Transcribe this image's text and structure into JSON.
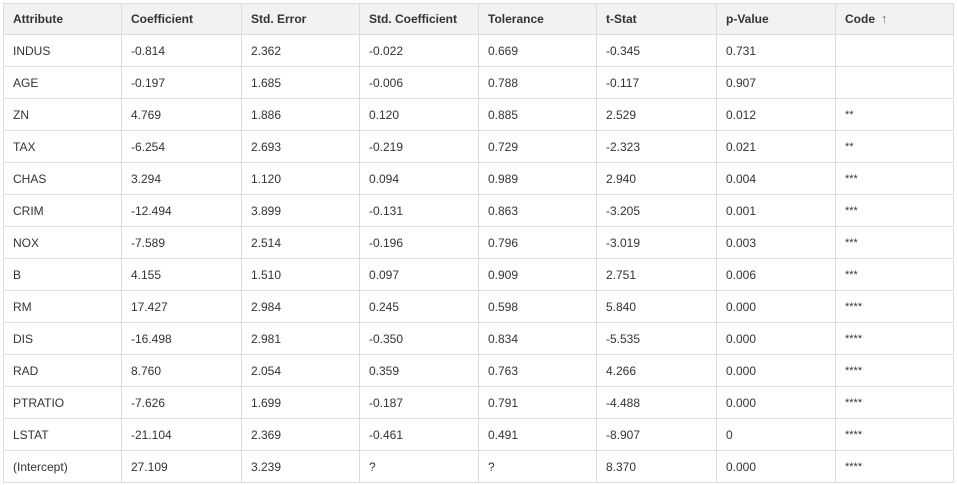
{
  "table": {
    "columns": [
      {
        "key": "attribute",
        "label": "Attribute"
      },
      {
        "key": "coefficient",
        "label": "Coefficient"
      },
      {
        "key": "std_error",
        "label": "Std. Error"
      },
      {
        "key": "std_coefficient",
        "label": "Std. Coefficient"
      },
      {
        "key": "tolerance",
        "label": "Tolerance"
      },
      {
        "key": "t_stat",
        "label": "t-Stat"
      },
      {
        "key": "p_value",
        "label": "p-Value"
      },
      {
        "key": "code",
        "label": "Code"
      }
    ],
    "sort": {
      "column": "code",
      "direction": "ascending",
      "icon": "arrow-up-icon",
      "glyph": "↑"
    },
    "rows": [
      [
        "INDUS",
        "-0.814",
        "2.362",
        "-0.022",
        "0.669",
        "-0.345",
        "0.731",
        ""
      ],
      [
        "AGE",
        "-0.197",
        "1.685",
        "-0.006",
        "0.788",
        "-0.117",
        "0.907",
        ""
      ],
      [
        "ZN",
        "4.769",
        "1.886",
        "0.120",
        "0.885",
        "2.529",
        "0.012",
        "**"
      ],
      [
        "TAX",
        "-6.254",
        "2.693",
        "-0.219",
        "0.729",
        "-2.323",
        "0.021",
        "**"
      ],
      [
        "CHAS",
        "3.294",
        "1.120",
        "0.094",
        "0.989",
        "2.940",
        "0.004",
        "***"
      ],
      [
        "CRIM",
        "-12.494",
        "3.899",
        "-0.131",
        "0.863",
        "-3.205",
        "0.001",
        "***"
      ],
      [
        "NOX",
        "-7.589",
        "2.514",
        "-0.196",
        "0.796",
        "-3.019",
        "0.003",
        "***"
      ],
      [
        "B",
        "4.155",
        "1.510",
        "0.097",
        "0.909",
        "2.751",
        "0.006",
        "***"
      ],
      [
        "RM",
        "17.427",
        "2.984",
        "0.245",
        "0.598",
        "5.840",
        "0.000",
        "****"
      ],
      [
        "DIS",
        "-16.498",
        "2.981",
        "-0.350",
        "0.834",
        "-5.535",
        "0.000",
        "****"
      ],
      [
        "RAD",
        "8.760",
        "2.054",
        "0.359",
        "0.763",
        "4.266",
        "0.000",
        "****"
      ],
      [
        "PTRATIO",
        "-7.626",
        "1.699",
        "-0.187",
        "0.791",
        "-4.488",
        "0.000",
        "****"
      ],
      [
        "LSTAT",
        "-21.104",
        "2.369",
        "-0.461",
        "0.491",
        "-8.907",
        "0",
        "****"
      ],
      [
        "(Intercept)",
        "27.109",
        "3.239",
        "?",
        "?",
        "8.370",
        "0.000",
        "****"
      ]
    ]
  }
}
